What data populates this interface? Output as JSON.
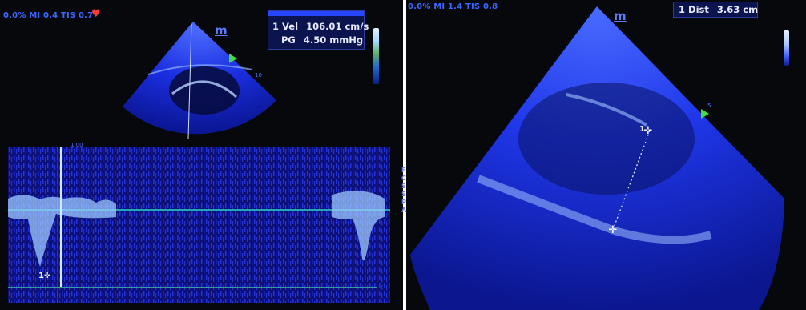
{
  "left_panel": {
    "header": "0.0% MI 0.4 TIS 0.7",
    "probe_marker": "m",
    "measurements": [
      {
        "index": "1",
        "label": "Vel",
        "value": "106.01 cm/s"
      },
      {
        "index": "",
        "label": "PG",
        "value": "4.50 mmHg"
      }
    ],
    "depth_label": "10",
    "scale_label": "1.00",
    "cursor_label": "1",
    "side_letters": "F\nC\nS\nS\nP\nA"
  },
  "right_panel": {
    "header": "0.0% MI 1.4 TIS 0.8",
    "probe_marker": "m",
    "measurement": {
      "index": "1",
      "label": "Dist",
      "value": "3.63 cm"
    },
    "cursor_label": "1",
    "depth_label": "5"
  },
  "colors": {
    "ultrasound_blue": "#1a3dff",
    "background": "#07080c",
    "baseline": "#28d7c8"
  }
}
